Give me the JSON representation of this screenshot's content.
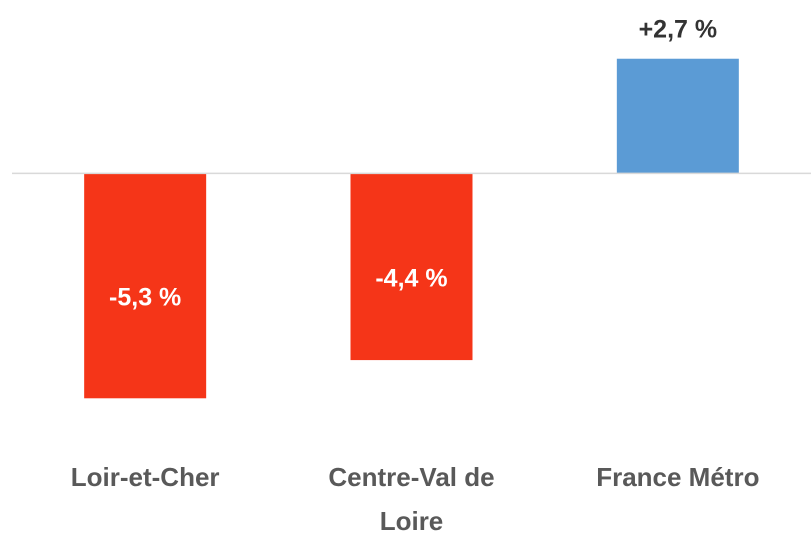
{
  "chart_data": {
    "type": "bar",
    "categories": [
      "Loir-et-Cher",
      "Centre-Val de Loire",
      "France Métro"
    ],
    "values": [
      -5.3,
      -4.4,
      2.7
    ],
    "value_labels": [
      "-5,3 %",
      "-4,4 %",
      "+2,7 %"
    ],
    "colors": [
      "#f53518",
      "#f53518",
      "#5b9bd5"
    ],
    "ylim": [
      -6,
      3
    ]
  }
}
